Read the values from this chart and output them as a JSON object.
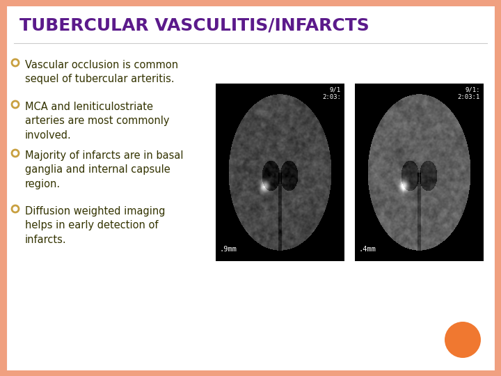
{
  "title": "TUBERCULAR VASCULITIS/INFARCTS",
  "title_color": "#5B1A8B",
  "title_fontsize": 18,
  "title_bold": true,
  "background_color": "#FFFFFF",
  "border_color": "#F0A080",
  "bullet_color": "#C8A040",
  "bullet_text_color": "#333300",
  "bullet_fontsize": 10.5,
  "bullets": [
    "Vascular occlusion is common\nsequel of tubercular arteritis.",
    "MCA and leniticulostriate\narteries are most commonly\ninvolved.",
    "Majority of infarcts are in basal\nganglia and internal capsule\nregion.",
    "Diffusion weighted imaging\nhelps in early detection of\ninfarcts."
  ],
  "orange_circle_color": "#F07830",
  "img1_label": ".9mm",
  "img1_time": "9/1\n2:03:",
  "img2_label": ".4mm",
  "img2_time": "9/1:\n2:03:1",
  "border_thickness": 8
}
